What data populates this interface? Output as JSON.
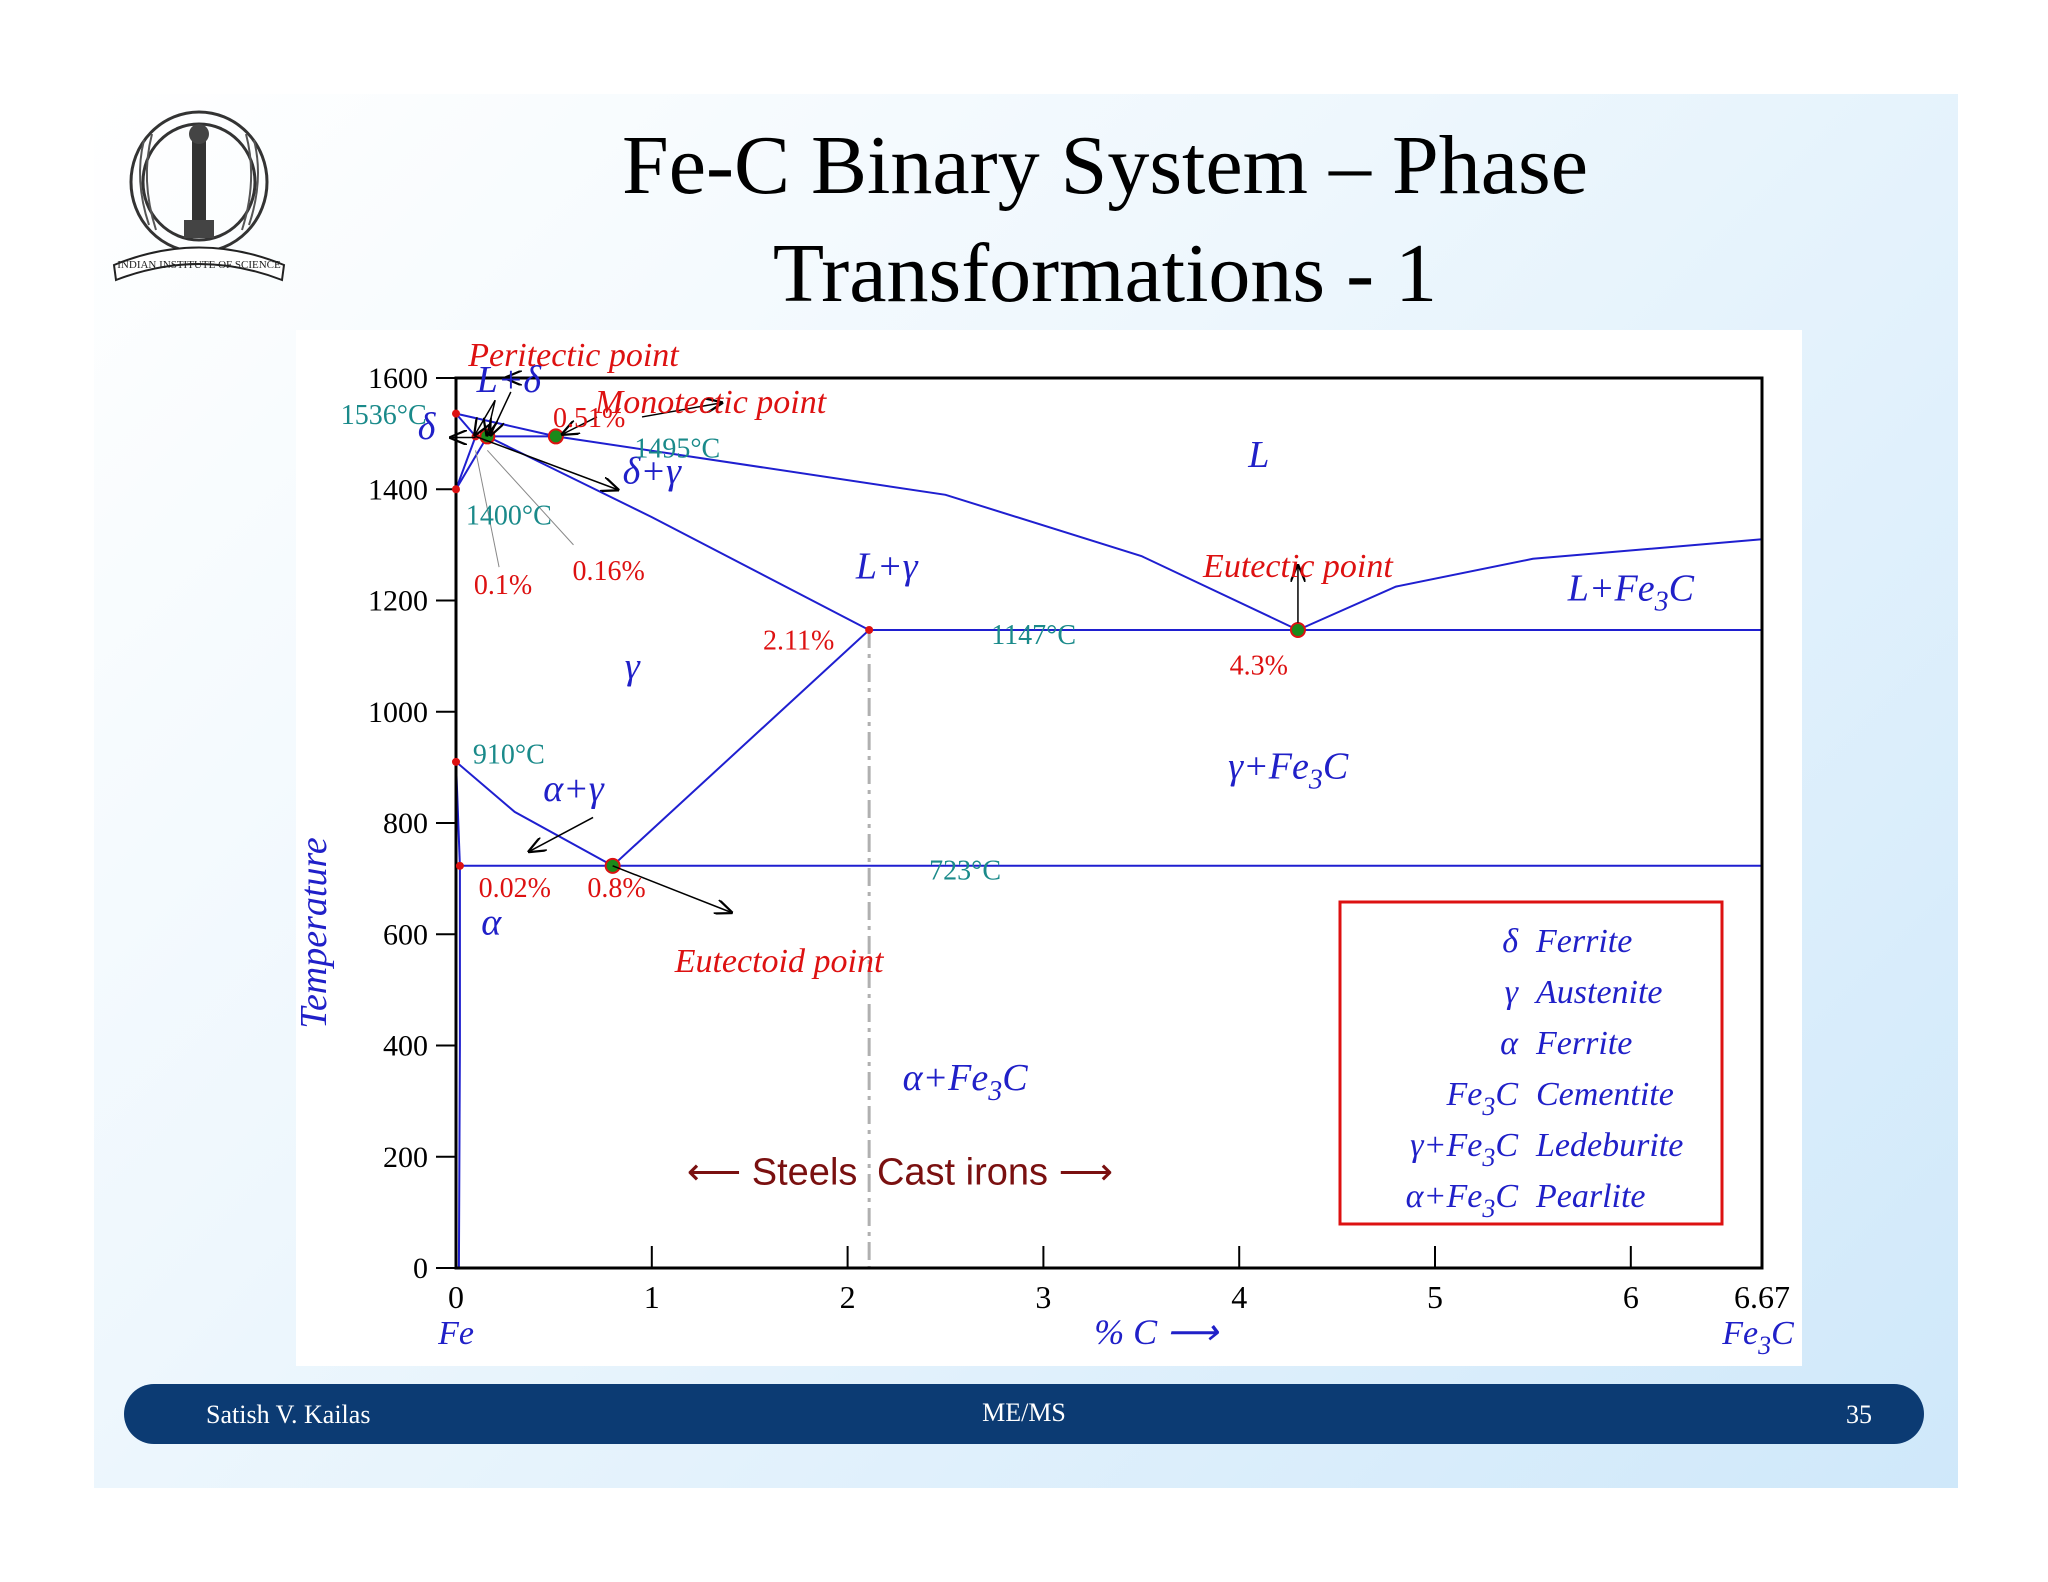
{
  "title_lines": [
    "Fe-C Binary System – Phase",
    "Transformations - 1"
  ],
  "footer": {
    "author": "Satish V. Kailas",
    "center": "ME/MS",
    "page": "35"
  },
  "colors": {
    "phase_line": "#1f1fd0",
    "label_blue": "#2020c8",
    "label_teal": "#1a8a8a",
    "label_red": "#dd1111",
    "point_green": "#1a8a1a",
    "axis": "#000000",
    "legend_border": "#dd1111",
    "footer_bg": "#0c3b73",
    "steels_text": "#7a1010"
  },
  "logo_icon": "institute-seal-icon",
  "chart_data": {
    "type": "phase-diagram",
    "xlabel": "% C",
    "ylabel": "Temperature",
    "xlim": [
      0,
      6.67
    ],
    "ylim": [
      0,
      1600
    ],
    "x_ticks": [
      "0",
      "1",
      "2",
      "3",
      "4",
      "5",
      "6",
      "6.67"
    ],
    "x_tick_values": [
      0,
      1,
      2,
      3,
      4,
      5,
      6,
      6.67
    ],
    "y_ticks": [
      "0",
      "200",
      "400",
      "600",
      "800",
      "1000",
      "1200",
      "1400",
      "1600"
    ],
    "y_tick_values": [
      0,
      200,
      400,
      600,
      800,
      1000,
      1200,
      1400,
      1600
    ],
    "x_left_label": "Fe",
    "x_right_label": "Fe3C",
    "lines": [
      {
        "name": "liquidus-delta",
        "points": [
          [
            0,
            1536
          ],
          [
            0.51,
            1495
          ]
        ]
      },
      {
        "name": "liquidus-gamma",
        "points": [
          [
            0.51,
            1495
          ],
          [
            2.5,
            1390
          ],
          [
            3.5,
            1280
          ],
          [
            4.3,
            1147
          ]
        ]
      },
      {
        "name": "liquidus-fe3c",
        "points": [
          [
            4.3,
            1147
          ],
          [
            4.8,
            1225
          ],
          [
            5.5,
            1275
          ],
          [
            6.67,
            1310
          ]
        ]
      },
      {
        "name": "peritectic-line",
        "points": [
          [
            0.1,
            1495
          ],
          [
            0.51,
            1495
          ]
        ]
      },
      {
        "name": "delta-solidus",
        "points": [
          [
            0,
            1536
          ],
          [
            0.1,
            1495
          ]
        ]
      },
      {
        "name": "delta-gamma-upper",
        "points": [
          [
            0.1,
            1495
          ],
          [
            0,
            1400
          ]
        ]
      },
      {
        "name": "delta-gamma-lower",
        "points": [
          [
            0.16,
            1495
          ],
          [
            0,
            1400
          ]
        ]
      },
      {
        "name": "gamma-solidus",
        "points": [
          [
            0.16,
            1495
          ],
          [
            1.0,
            1350
          ],
          [
            2.11,
            1147
          ]
        ]
      },
      {
        "name": "eutectic-line",
        "points": [
          [
            2.11,
            1147
          ],
          [
            6.67,
            1147
          ]
        ]
      },
      {
        "name": "acm-line",
        "points": [
          [
            2.11,
            1147
          ],
          [
            0.8,
            723
          ]
        ]
      },
      {
        "name": "a3-line",
        "points": [
          [
            0,
            910
          ],
          [
            0.3,
            820
          ],
          [
            0.8,
            723
          ]
        ]
      },
      {
        "name": "alpha-boundary",
        "points": [
          [
            0,
            910
          ],
          [
            0.02,
            723
          ]
        ]
      },
      {
        "name": "solvus-alpha",
        "points": [
          [
            0.02,
            723
          ],
          [
            0.02,
            400
          ],
          [
            0.015,
            0
          ]
        ]
      },
      {
        "name": "eutectoid-line",
        "points": [
          [
            0.02,
            723
          ],
          [
            6.67,
            723
          ]
        ]
      }
    ],
    "divider": {
      "x": 2.11
    },
    "points": [
      {
        "name": "peritectic",
        "x": 0.16,
        "y": 1495
      },
      {
        "name": "monotectic",
        "x": 0.51,
        "y": 1495
      },
      {
        "name": "eutectic",
        "x": 4.3,
        "y": 1147
      },
      {
        "name": "eutectoid",
        "x": 0.8,
        "y": 723
      }
    ],
    "red_points": [
      {
        "x": 0,
        "y": 1536
      },
      {
        "x": 0.1,
        "y": 1495
      },
      {
        "x": 0,
        "y": 1400
      },
      {
        "x": 0,
        "y": 910
      },
      {
        "x": 0.02,
        "y": 723
      },
      {
        "x": 2.11,
        "y": 1147
      }
    ],
    "phase_labels": [
      {
        "html": "L+&#948;",
        "x": 0.27,
        "y": 1575
      },
      {
        "html": "&#948;",
        "x": -0.15,
        "y": 1490
      },
      {
        "html": "&#948;+&#947;",
        "x": 1.0,
        "y": 1410
      },
      {
        "html": "L",
        "x": 4.1,
        "y": 1440
      },
      {
        "html": "L+&#947;",
        "x": 2.2,
        "y": 1240
      },
      {
        "html": "L+Fe<tspan font-size='28' dy='10'>3</tspan><tspan dy='-10'>C</tspan>",
        "x": 6.0,
        "y": 1200
      },
      {
        "html": "&#947;",
        "x": 0.9,
        "y": 1060
      },
      {
        "html": "&#945;+&#947;",
        "x": 0.6,
        "y": 840
      },
      {
        "html": "&#947;+Fe<tspan font-size='28' dy='10'>3</tspan><tspan dy='-10'>C</tspan>",
        "x": 4.25,
        "y": 880
      },
      {
        "html": "&#945;",
        "x": 0.18,
        "y": 600
      },
      {
        "html": "&#945;+Fe<tspan font-size='28' dy='10'>3</tspan><tspan dy='-10'>C</tspan>",
        "x": 2.6,
        "y": 320
      }
    ],
    "teal_labels": [
      {
        "text": "1536°C",
        "x": -0.15,
        "y": 1535,
        "anchor": "end"
      },
      {
        "text": "1495°C",
        "x": 1.13,
        "y": 1475,
        "anchor": "middle"
      },
      {
        "text": "1400°C",
        "x": 0.27,
        "y": 1355,
        "anchor": "middle"
      },
      {
        "text": "1147°C",
        "x": 2.95,
        "y": 1140,
        "anchor": "middle"
      },
      {
        "text": "910°C",
        "x": 0.27,
        "y": 925,
        "anchor": "middle"
      },
      {
        "text": "723°C",
        "x": 2.6,
        "y": 716,
        "anchor": "middle"
      }
    ],
    "red_labels": [
      {
        "text": "0.51%",
        "x": 0.68,
        "y": 1530
      },
      {
        "text": "0.1%",
        "x": 0.24,
        "y": 1230
      },
      {
        "text": "0.16%",
        "x": 0.78,
        "y": 1255
      },
      {
        "text": "2.11%",
        "x": 1.75,
        "y": 1130
      },
      {
        "text": "4.3%",
        "x": 4.1,
        "y": 1085
      },
      {
        "text": "0.02%",
        "x": 0.3,
        "y": 685
      },
      {
        "text": "0.8%",
        "x": 0.82,
        "y": 685
      }
    ],
    "annotations": [
      {
        "text": "Peritectic point",
        "x": 0.6,
        "y": 1640
      },
      {
        "text": "Monotectic point",
        "x": 1.3,
        "y": 1555
      },
      {
        "text": "Eutectic point",
        "x": 4.3,
        "y": 1260
      },
      {
        "text": "Eutectoid point",
        "x": 1.65,
        "y": 550
      }
    ],
    "region_labels": {
      "steels": "Steels",
      "cast_irons": "Cast irons"
    },
    "legend": {
      "rows": [
        {
          "symbol_html": "&#948;",
          "name": "Ferrite"
        },
        {
          "symbol_html": "&#947;",
          "name": "Austenite"
        },
        {
          "symbol_html": "&#945;",
          "name": "Ferrite"
        },
        {
          "symbol_html": "Fe<tspan font-size='26' dy='10'>3</tspan><tspan dy='-10'>C</tspan>",
          "name": "Cementite"
        },
        {
          "symbol_html": "&#947;+Fe<tspan font-size='26' dy='10'>3</tspan><tspan dy='-10'>C</tspan>",
          "name": "Ledeburite"
        },
        {
          "symbol_html": "&#945;+Fe<tspan font-size='26' dy='10'>3</tspan><tspan dy='-10'>C</tspan>",
          "name": "Pearlite"
        }
      ]
    }
  }
}
